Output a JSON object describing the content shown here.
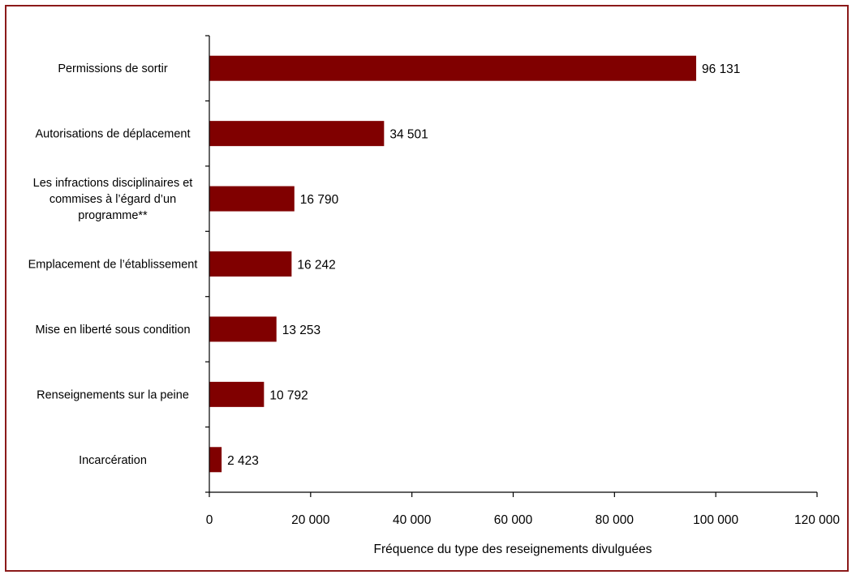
{
  "chart_data": {
    "type": "bar",
    "orientation": "horizontal",
    "categories": [
      [
        "Permissions de sortir"
      ],
      [
        "Autorisations de déplacement"
      ],
      [
        "Les infractions disciplinaires et",
        "commises à l’égard d’un",
        "programme**"
      ],
      [
        "Emplacement de l’établissement"
      ],
      [
        "Mise en liberté sous condition"
      ],
      [
        "Renseignements sur la peine"
      ],
      [
        "Incarcération"
      ]
    ],
    "values": [
      96131,
      34501,
      16790,
      16242,
      13253,
      10792,
      2423
    ],
    "value_labels": [
      "96 131",
      "34 501",
      "16 790",
      "16 242",
      "13 253",
      "10 792",
      "2 423"
    ],
    "xlabel": "Fréquence du type des reseignements divulguées",
    "ylabel": "",
    "xlim": [
      0,
      120000
    ],
    "x_ticks": [
      0,
      20000,
      40000,
      60000,
      80000,
      100000,
      120000
    ],
    "x_tick_labels": [
      "0",
      "20 000",
      "40 000",
      "60 000",
      "80 000",
      "100 000",
      "120 000"
    ],
    "grid": false,
    "bar_color": "#800000",
    "frame_color": "#8b1a1a"
  }
}
